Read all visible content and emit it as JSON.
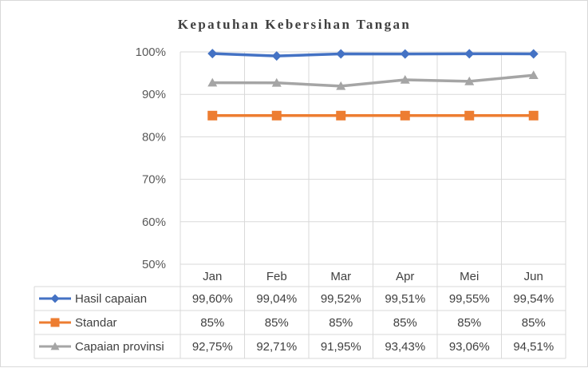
{
  "chart_data": {
    "type": "line",
    "title": "Kepatuhan Kebersihan Tangan",
    "categories": [
      "Jan",
      "Feb",
      "Mar",
      "Apr",
      "Mei",
      "Jun"
    ],
    "ylim": [
      0.5,
      1.0
    ],
    "yticks": [
      {
        "value": 0.5,
        "label": "50%"
      },
      {
        "value": 0.6,
        "label": "60%"
      },
      {
        "value": 0.7,
        "label": "70%"
      },
      {
        "value": 0.8,
        "label": "80%"
      },
      {
        "value": 0.9,
        "label": "90%"
      },
      {
        "value": 1.0,
        "label": "100%"
      }
    ],
    "grid": true,
    "legend_placement": "data-table-bottom",
    "series": [
      {
        "name": "Hasil capaian",
        "color": "#4472c4",
        "marker": "diamond",
        "values": [
          0.996,
          0.9904,
          0.9952,
          0.9951,
          0.9955,
          0.9954
        ],
        "labels": [
          "99,60%",
          "99,04%",
          "99,52%",
          "99,51%",
          "99,55%",
          "99,54%"
        ]
      },
      {
        "name": "Standar",
        "color": "#ed7d31",
        "marker": "square",
        "values": [
          0.85,
          0.85,
          0.85,
          0.85,
          0.85,
          0.85
        ],
        "labels": [
          "85%",
          "85%",
          "85%",
          "85%",
          "85%",
          "85%"
        ]
      },
      {
        "name": "Capaian provinsi",
        "color": "#a5a5a5",
        "marker": "triangle",
        "values": [
          0.9275,
          0.9271,
          0.9195,
          0.9343,
          0.9306,
          0.9451
        ],
        "labels": [
          "92,75%",
          "92,71%",
          "91,95%",
          "93,43%",
          "93,06%",
          "94,51%"
        ]
      }
    ]
  }
}
